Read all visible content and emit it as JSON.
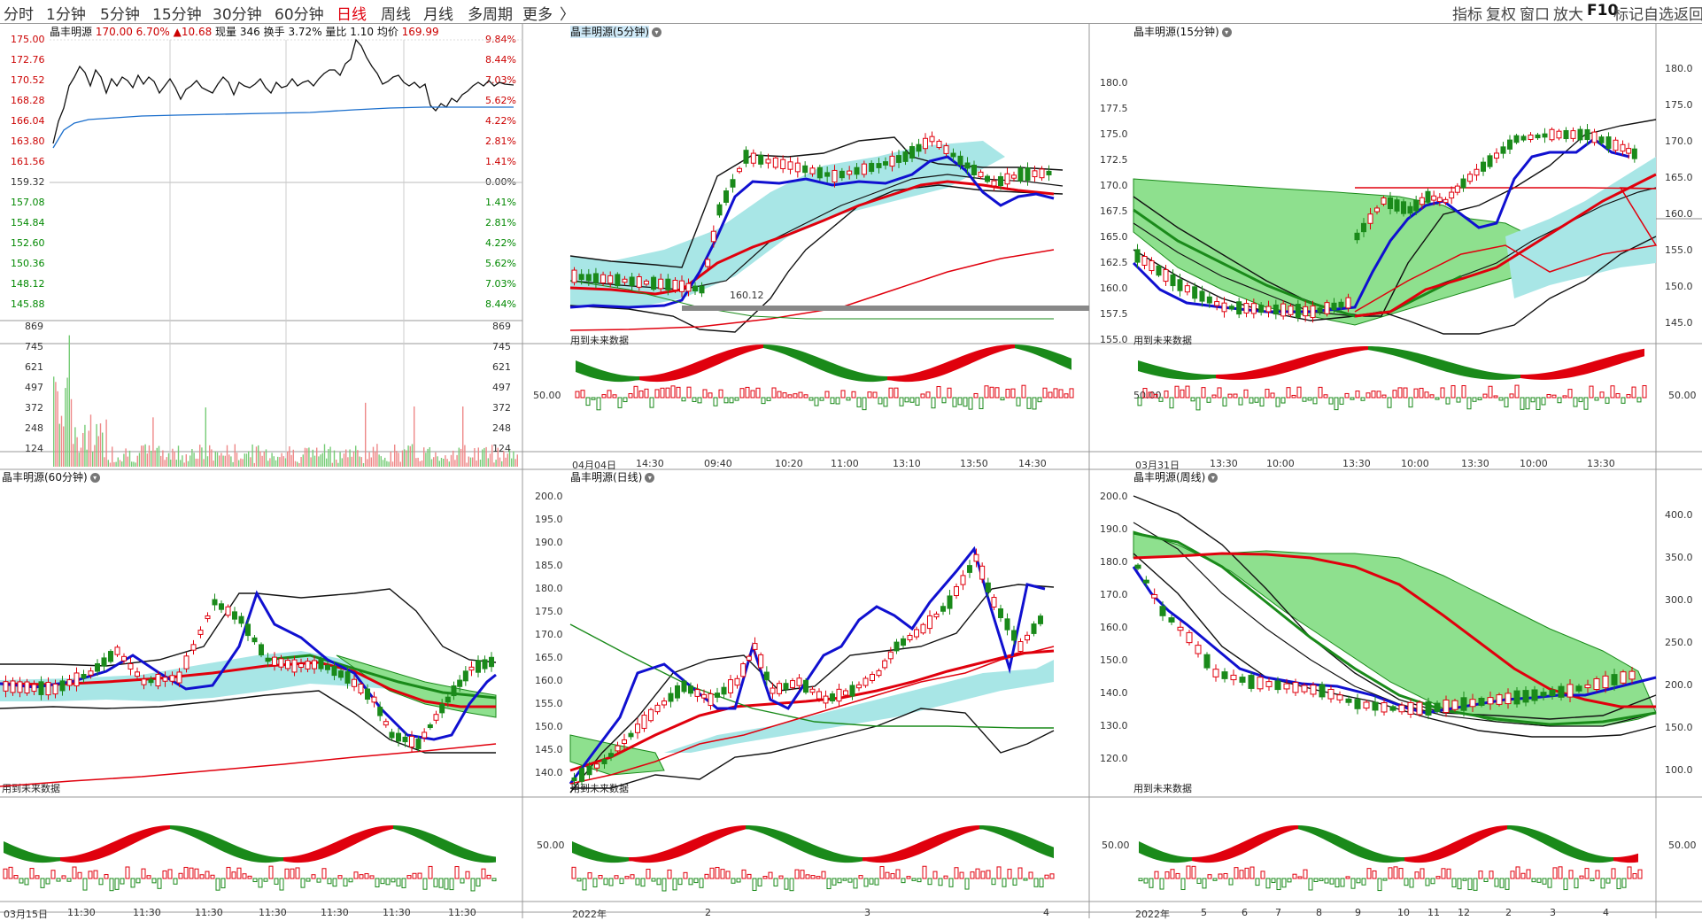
{
  "toolbar": {
    "periods": [
      "分时",
      "1分钟",
      "5分钟",
      "15分钟",
      "30分钟",
      "60分钟",
      "日线",
      "周线",
      "月线",
      "多周期",
      "更多"
    ],
    "active_period": "日线",
    "more_chevron": "〉",
    "right_tools": [
      "指标",
      "复权",
      "窗口",
      "放大",
      "F10",
      "标记",
      "自选",
      "返回"
    ]
  },
  "minute_panel": {
    "stock": "晶丰明源",
    "price": "170.00",
    "change_pct": "6.70%",
    "change": "▲10.68",
    "volume_label": "现量",
    "volume": "346",
    "turnover_label": "换手",
    "turnover": "3.72%",
    "ratio_label": "量比",
    "ratio": "1.10",
    "avg_label": "均价",
    "avg": "169.99",
    "price_ticks": [
      "175.00",
      "172.76",
      "170.52",
      "168.28",
      "166.04",
      "163.80",
      "161.56",
      "159.32",
      "157.08",
      "154.84",
      "152.60",
      "150.36",
      "148.12",
      "145.88"
    ],
    "pct_ticks": [
      "9.84%",
      "8.44%",
      "7.03%",
      "5.62%",
      "4.22%",
      "2.81%",
      "1.41%",
      "0.00%",
      "1.41%",
      "2.81%",
      "4.22%",
      "5.62%",
      "7.03%",
      "8.44%"
    ],
    "vol_ticks": [
      "869",
      "745",
      "621",
      "497",
      "372",
      "248",
      "124"
    ]
  },
  "panels": {
    "p5": {
      "title": "晶丰明源(5分钟)",
      "note": "用到未来数据",
      "price_label": "160.12",
      "osc_tick": "50.00",
      "x_ticks": [
        "04月04日",
        "14:30",
        "09:40",
        "10:20",
        "11:00",
        "13:10",
        "13:50",
        "14:30"
      ]
    },
    "p15": {
      "title": "晶丰明源(15分钟)",
      "note": "用到未来数据",
      "y_ticks": [
        "180.0",
        "177.5",
        "175.0",
        "172.5",
        "170.0",
        "167.5",
        "165.0",
        "162.5",
        "160.0",
        "157.5",
        "155.0"
      ],
      "osc_tick": "50.00",
      "right_ticks": [
        "180.0",
        "175.0",
        "170.0",
        "165.0",
        "160.0",
        "155.0",
        "150.0",
        "145.0"
      ],
      "right_osc_tick": "50.00",
      "x_ticks": [
        "03月31日",
        "13:30",
        "10:00",
        "13:30",
        "10:00",
        "13:30",
        "10:00",
        "13:30"
      ]
    },
    "p60": {
      "title": "晶丰明源(60分钟)",
      "note": "用到未来数据",
      "x_ticks": [
        "03月15日",
        "11:30",
        "11:30",
        "11:30",
        "11:30",
        "11:30",
        "11:30",
        "11:30"
      ]
    },
    "pday": {
      "title": "晶丰明源(日线)",
      "note": "用到未来数据",
      "y_ticks": [
        "200.0",
        "195.0",
        "190.0",
        "185.0",
        "180.0",
        "175.0",
        "170.0",
        "165.0",
        "160.0",
        "155.0",
        "150.0",
        "145.0",
        "140.0"
      ],
      "osc_tick": "50.00",
      "x_ticks": [
        "2022年",
        "2",
        "3",
        "4"
      ]
    },
    "pweek": {
      "title": "晶丰明源(周线)",
      "note": "用到未来数据",
      "y_ticks": [
        "200.0",
        "190.0",
        "180.0",
        "170.0",
        "160.0",
        "150.0",
        "140.0",
        "130.0",
        "120.0"
      ],
      "osc_tick": "50.00",
      "right_ticks": [
        "400.0",
        "350.0",
        "300.0",
        "250.0",
        "200.0",
        "150.0",
        "100.0"
      ],
      "right_osc_tick": "50.00",
      "x_ticks": [
        "2022年",
        "5",
        "6",
        "7",
        "8",
        "9",
        "10",
        "11",
        "12",
        "2",
        "3",
        "4"
      ]
    }
  },
  "colors": {
    "up": "#e0000d",
    "down": "#1a8a1a",
    "ma_blue": "#1010d0",
    "cloud_cyan": "#a8e6e6",
    "cloud_green": "#8ee08e"
  }
}
